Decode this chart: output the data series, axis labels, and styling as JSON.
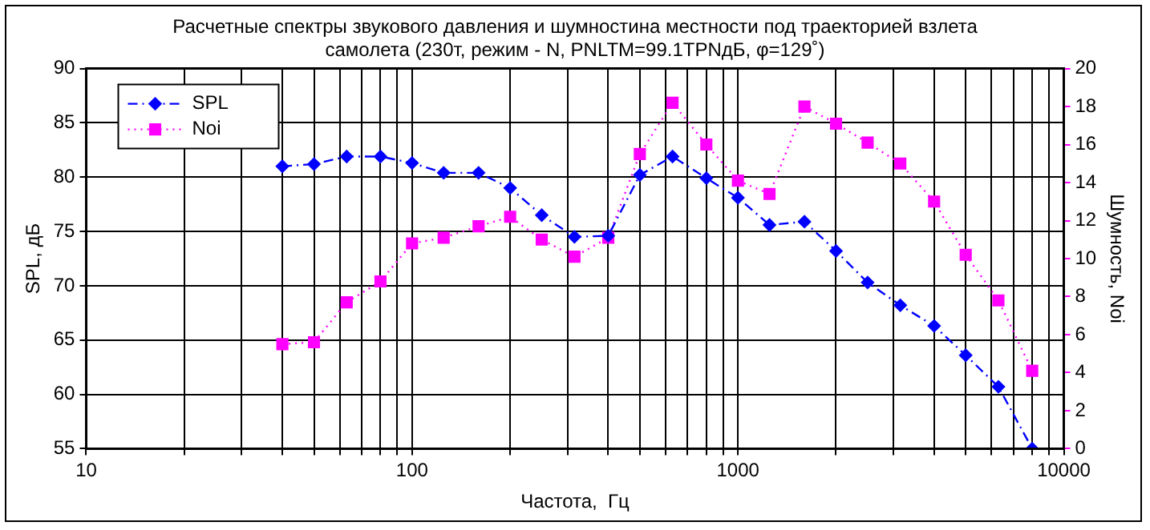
{
  "chart_data": {
    "type": "line",
    "title": "Расчетные спектры звукового давления и шумностина местности под траекторией взлета\nсамолета (230т, режим - N, PNLTM=99.1TPNдБ, φ=129˚)",
    "xlabel": "Частота,  Гц",
    "ylabel": "SPL, дБ",
    "y2label": "Шумность, Noi",
    "x": [
      40,
      50,
      63,
      80,
      100,
      125,
      160,
      200,
      250,
      315,
      400,
      500,
      630,
      800,
      1000,
      1250,
      1600,
      2000,
      2500,
      3150,
      4000,
      5000,
      6300,
      8000
    ],
    "series": [
      {
        "name": "SPL",
        "color": "#0000ff",
        "marker": "diamond",
        "line_style": "dashed",
        "values": [
          81,
          81.2,
          81.9,
          81.9,
          81.3,
          80.4,
          80.4,
          79,
          76.5,
          74.5,
          74.6,
          80.2,
          81.9,
          79.9,
          78.1,
          75.6,
          75.9,
          73.2,
          70.3,
          68.2,
          66.3,
          63.6,
          60.7,
          55
        ]
      },
      {
        "name": "Noi",
        "color": "#ff00ff",
        "marker": "square",
        "line_style": "dotted",
        "axis": "y2",
        "values": [
          5.5,
          5.6,
          7.7,
          8.8,
          10.8,
          11.1,
          11.7,
          12.2,
          11,
          10.1,
          11.1,
          15.5,
          18.2,
          16,
          14.1,
          13.4,
          18,
          17.1,
          16.1,
          15,
          13,
          10.2,
          7.8,
          4.1
        ]
      }
    ],
    "log": "x",
    "xlim": [
      10,
      10000
    ],
    "xticks": [
      10,
      {
        "value": 20,
        "label": null
      },
      {
        "value": 30,
        "label": null
      },
      {
        "value": 40,
        "label": null
      },
      {
        "value": 50,
        "label": null
      },
      {
        "value": 60,
        "label": null
      },
      {
        "value": 70,
        "label": null
      },
      {
        "value": 80,
        "label": null
      },
      {
        "value": 90,
        "label": null
      },
      100,
      {
        "value": 200,
        "label": null
      },
      {
        "value": 300,
        "label": null
      },
      {
        "value": 400,
        "label": null
      },
      {
        "value": 500,
        "label": null
      },
      {
        "value": 600,
        "label": null
      },
      {
        "value": 700,
        "label": null
      },
      {
        "value": 800,
        "label": null
      },
      {
        "value": 900,
        "label": null
      },
      1000,
      {
        "value": 2000,
        "label": null
      },
      {
        "value": 3000,
        "label": null
      },
      {
        "value": 4000,
        "label": null
      },
      {
        "value": 5000,
        "label": null
      },
      {
        "value": 6000,
        "label": null
      },
      {
        "value": 7000,
        "label": null
      },
      {
        "value": 8000,
        "label": null
      },
      {
        "value": 9000,
        "label": null
      },
      10000
    ],
    "ylim": [
      55,
      90
    ],
    "yticks": [
      55,
      60,
      65,
      70,
      75,
      80,
      85,
      90
    ],
    "y2lim": [
      0,
      20
    ],
    "y2ticks": [
      0,
      2,
      4,
      6,
      8,
      10,
      12,
      14,
      16,
      18,
      20
    ],
    "grid": true,
    "legend": "top left"
  }
}
